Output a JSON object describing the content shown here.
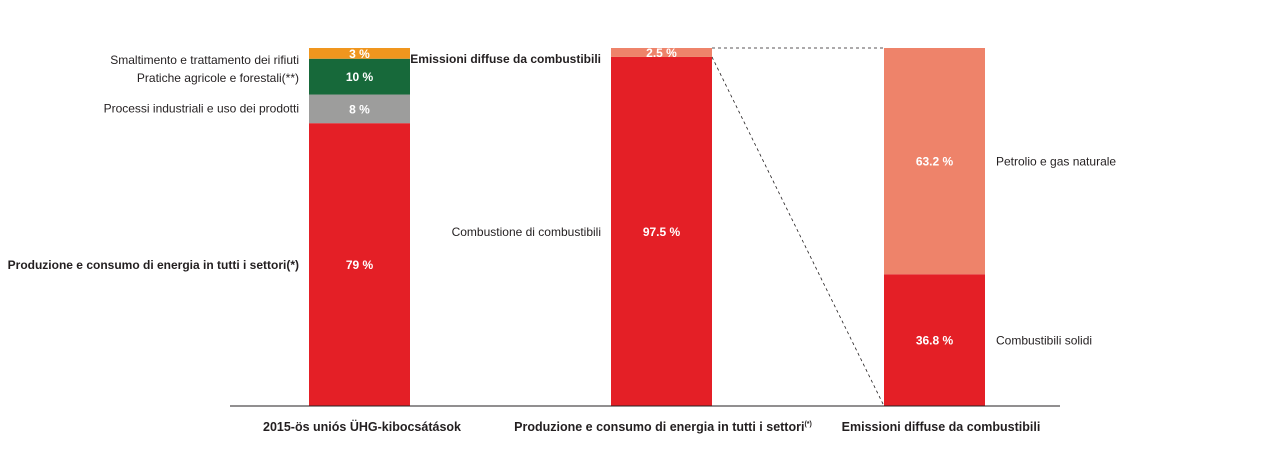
{
  "chart_data": {
    "type": "bar",
    "stacked": true,
    "percent": true,
    "colors": {
      "waste": "#f0961e",
      "agriculture": "#17693a",
      "industrial": "#9d9d9c",
      "energy": "#e41f26",
      "fugitive": "#ee836a",
      "oil_gas": "#ee836a",
      "solid": "#e41f26",
      "text": "#231f20"
    },
    "bars": [
      {
        "key": "ghg",
        "category": "2015-ös uniós ÜHG-kibocsátások",
        "segments": [
          {
            "key": "energy",
            "label": "Produzione e consumo di energia in tutti i settori(*)",
            "value": 79,
            "value_label": "79 %",
            "color": "energy"
          },
          {
            "key": "industrial",
            "label": "Processi industriali e uso dei prodotti",
            "value": 8,
            "value_label": "8 %",
            "color": "industrial"
          },
          {
            "key": "agriculture",
            "label": "Pratiche agricole e forestali(**)",
            "value": 10,
            "value_label": "10 %",
            "color": "agriculture"
          },
          {
            "key": "waste",
            "label": "Smaltimento e trattamento dei rifiuti",
            "value": 3,
            "value_label": "3 %",
            "color": "waste"
          }
        ]
      },
      {
        "key": "energy",
        "category": "Produzione e consumo di energia in tutti i settori",
        "category_sup": "(*)",
        "segments": [
          {
            "key": "combustion",
            "label": "Combustione di combustibili",
            "value": 97.5,
            "value_label": "97.5 %",
            "color": "energy"
          },
          {
            "key": "fugitive",
            "label": "Emissioni diffuse da combustibili",
            "value": 2.5,
            "value_label": "2.5 %",
            "color": "fugitive"
          }
        ]
      },
      {
        "key": "fugitive",
        "category": "Emissioni diffuse da combustibili",
        "segments": [
          {
            "key": "solid",
            "label": "Combustibili solidi",
            "value": 36.8,
            "value_label": "36.8 %",
            "color": "solid"
          },
          {
            "key": "oil_gas",
            "label": "Petrolio e gas naturale",
            "value": 63.2,
            "value_label": "63.2 %",
            "color": "oil_gas"
          }
        ]
      }
    ],
    "connector": {
      "from_bar": "energy",
      "from_segment": "fugitive",
      "to_bar": "fugitive",
      "style": "dashed"
    }
  }
}
